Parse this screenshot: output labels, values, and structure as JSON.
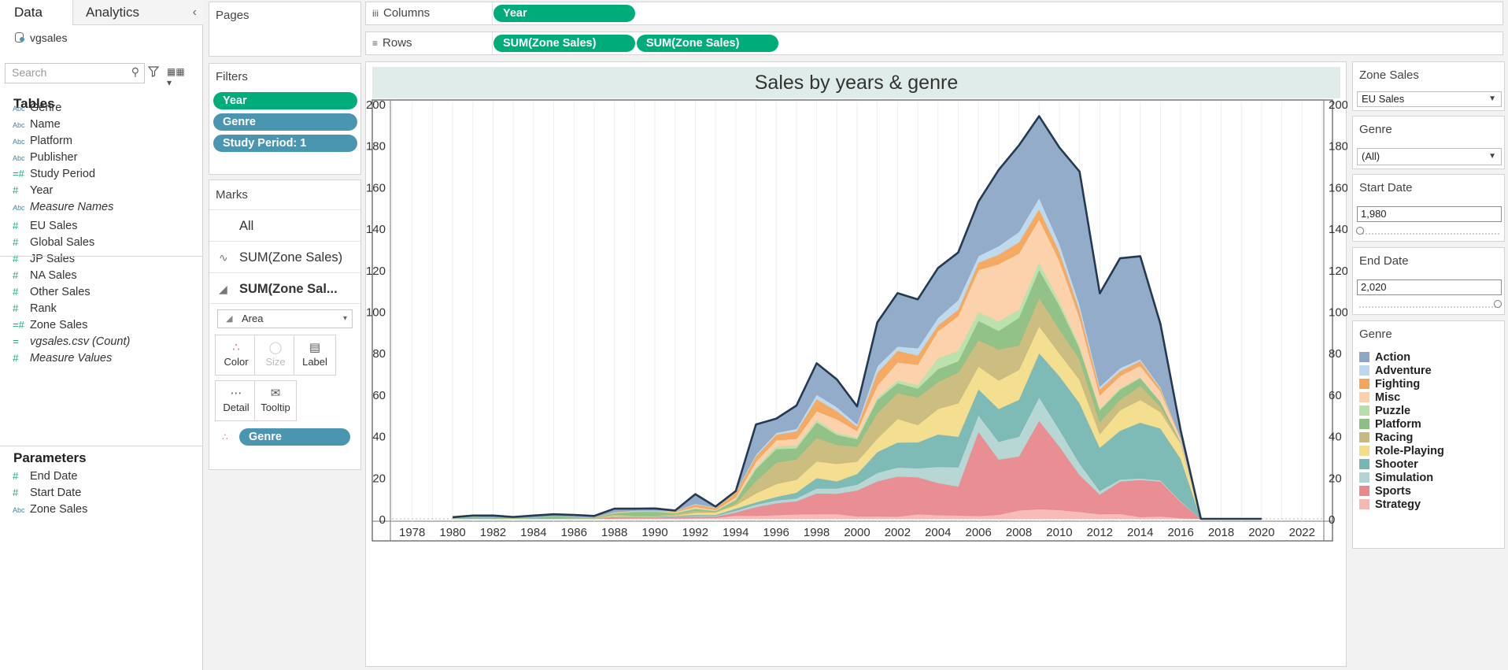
{
  "tabs": {
    "data": "Data",
    "analytics": "Analytics"
  },
  "datasource": "vgsales",
  "search": {
    "placeholder": "Search"
  },
  "tables": {
    "title": "Tables",
    "fields": [
      {
        "type": "Abc",
        "name": "Genre"
      },
      {
        "type": "Abc",
        "name": "Name"
      },
      {
        "type": "Abc",
        "name": "Platform"
      },
      {
        "type": "Abc",
        "name": "Publisher"
      },
      {
        "type": "=#",
        "name": "Study Period"
      },
      {
        "type": "#",
        "name": "Year"
      },
      {
        "type": "Abc",
        "name": "Measure Names"
      },
      {
        "type": "#",
        "name": "EU Sales"
      },
      {
        "type": "#",
        "name": "Global Sales"
      },
      {
        "type": "#",
        "name": "JP Sales"
      },
      {
        "type": "#",
        "name": "NA Sales"
      },
      {
        "type": "#",
        "name": "Other Sales"
      },
      {
        "type": "#",
        "name": "Rank"
      },
      {
        "type": "=#",
        "name": "Zone Sales"
      },
      {
        "type": "=",
        "name": "vgsales.csv (Count)"
      },
      {
        "type": "#",
        "name": "Measure Values"
      }
    ]
  },
  "parameters": {
    "title": "Parameters",
    "fields": [
      {
        "type": "#",
        "name": "End Date"
      },
      {
        "type": "#",
        "name": "Start Date"
      },
      {
        "type": "Abc",
        "name": "Zone Sales"
      }
    ]
  },
  "pages": {
    "title": "Pages"
  },
  "filters": {
    "title": "Filters",
    "pills": [
      "Year",
      "Genre",
      "Study Period: 1"
    ]
  },
  "marks": {
    "title": "Marks",
    "rows": [
      "All",
      "SUM(Zone Sales)",
      "SUM(Zone Sal..."
    ],
    "mark_type": "Area",
    "buttons": [
      "Color",
      "Size",
      "Label",
      "Detail",
      "Tooltip"
    ],
    "color_pill": "Genre"
  },
  "columns_shelf": {
    "label": "Columns",
    "pills": [
      "Year"
    ]
  },
  "rows_shelf": {
    "label": "Rows",
    "pills": [
      "SUM(Zone Sales)",
      "SUM(Zone Sales)"
    ]
  },
  "right_panel": {
    "zone_sales": {
      "title": "Zone Sales",
      "value": "EU Sales"
    },
    "genre_filter": {
      "title": "Genre",
      "value": "(All)"
    },
    "start_date": {
      "title": "Start Date",
      "value": "1,980"
    },
    "end_date": {
      "title": "End Date",
      "value": "2,020"
    },
    "legend_title": "Genre"
  },
  "chart_data": {
    "type": "area",
    "title": "Sales by years & genre",
    "x_label": "",
    "y_label": "",
    "xlim": [
      1977,
      2023
    ],
    "ylim": [
      0,
      200
    ],
    "y_ticks": [
      0,
      20,
      40,
      60,
      80,
      100,
      120,
      140,
      160,
      180,
      200
    ],
    "x_ticks": [
      1978,
      1980,
      1982,
      1984,
      1986,
      1988,
      1990,
      1992,
      1994,
      1996,
      1998,
      2000,
      2002,
      2004,
      2006,
      2008,
      2010,
      2012,
      2014,
      2016,
      2018,
      2020,
      2022
    ],
    "grid": true,
    "stacked": true,
    "x": [
      1980,
      1981,
      1982,
      1983,
      1984,
      1985,
      1986,
      1987,
      1988,
      1989,
      1990,
      1991,
      1992,
      1993,
      1994,
      1995,
      1996,
      1997,
      1998,
      1999,
      2000,
      2001,
      2002,
      2003,
      2004,
      2005,
      2006,
      2007,
      2008,
      2009,
      2010,
      2011,
      2012,
      2013,
      2014,
      2015,
      2016,
      2017,
      2018,
      2019,
      2020
    ],
    "series": [
      {
        "name": "Strategy",
        "color": "#f5b8b4",
        "values": [
          0,
          0,
          0,
          0,
          0,
          0,
          0,
          0,
          0.2,
          0.3,
          0.3,
          0.3,
          0.4,
          0.5,
          1.6,
          1.5,
          1.8,
          2.2,
          2.3,
          2.4,
          1.2,
          1.2,
          1.1,
          2.3,
          1.8,
          1.7,
          1.4,
          2.0,
          4.1,
          4.7,
          4.3,
          3.4,
          2.3,
          2.5,
          0.9,
          1.2,
          0.4,
          0,
          0,
          0,
          0
        ]
      },
      {
        "name": "Sports",
        "color": "#e8888d",
        "values": [
          0.1,
          0.1,
          0.1,
          0.1,
          0.1,
          0.1,
          0.1,
          0.1,
          0.6,
          0.5,
          0.4,
          0.6,
          0.6,
          0.6,
          1.5,
          4.2,
          5.7,
          6.3,
          10.0,
          9.7,
          12.5,
          16.9,
          19.3,
          17.8,
          15.5,
          13.9,
          40.6,
          26.6,
          26.0,
          42.6,
          30.6,
          17.8,
          9.4,
          15.5,
          17.9,
          16.8,
          7.8,
          0,
          0,
          0,
          0
        ]
      },
      {
        "name": "Simulation",
        "color": "#b3d5d2",
        "values": [
          0,
          0,
          0,
          0,
          0,
          0,
          0,
          0,
          0,
          0,
          0.1,
          0.2,
          0.4,
          0.4,
          0.8,
          1.2,
          1.4,
          1.4,
          2.4,
          2.6,
          2.8,
          4.1,
          4.4,
          4.3,
          7.8,
          9.3,
          8.0,
          8.6,
          9.5,
          11.3,
          8.2,
          5.5,
          1.8,
          1.0,
          0.7,
          0.6,
          0.4,
          0,
          0,
          0,
          0
        ]
      },
      {
        "name": "Shooter",
        "color": "#77b7b2",
        "values": [
          0.1,
          0.3,
          0.2,
          0.1,
          0.2,
          0.2,
          0.1,
          0.1,
          0.3,
          0.2,
          0.2,
          0.3,
          0.6,
          0.4,
          1.1,
          1.1,
          1.7,
          2.8,
          5.0,
          3.4,
          5.2,
          10.0,
          12.0,
          12.5,
          15.6,
          14.7,
          12.5,
          15.8,
          17.8,
          21.3,
          25.8,
          29.1,
          20.8,
          23.5,
          26.9,
          25.0,
          20.4,
          0,
          0,
          0,
          0
        ]
      },
      {
        "name": "Role-Playing",
        "color": "#f3dc8a",
        "values": [
          0,
          0,
          0,
          0,
          0,
          0,
          0.1,
          0.1,
          0.5,
          0.3,
          0.2,
          0.3,
          0.9,
          1.2,
          1.6,
          4.3,
          6.2,
          6.2,
          8.0,
          8.4,
          5.9,
          6.5,
          11.4,
          8.4,
          12.3,
          16.1,
          11.0,
          13.7,
          14.4,
          13.0,
          10.9,
          11.3,
          6.6,
          9.9,
          10.9,
          7.9,
          7.3,
          0,
          0,
          0,
          0
        ]
      },
      {
        "name": "Racing",
        "color": "#c9b97a",
        "values": [
          0,
          0,
          0,
          0,
          0,
          0,
          0,
          0.1,
          0.5,
          0.4,
          0.5,
          0.6,
          1.0,
          0.3,
          0.9,
          6.1,
          10.4,
          9.8,
          11.4,
          9.2,
          7.2,
          12.3,
          12.5,
          13.2,
          13.1,
          14.9,
          12.7,
          15.0,
          11.8,
          13.8,
          11.7,
          9.9,
          5.8,
          5.1,
          6.9,
          2.7,
          0.6,
          0,
          0,
          0,
          0
        ]
      },
      {
        "name": "Platform",
        "color": "#8cbf82",
        "values": [
          0,
          0.6,
          0.3,
          0.2,
          0.4,
          1.3,
          0.6,
          0.2,
          0.6,
          1.7,
          1.8,
          0.4,
          0.9,
          0.4,
          1.5,
          5.6,
          6.4,
          5.3,
          7.4,
          4.8,
          3.6,
          6.3,
          4.7,
          4.3,
          6.1,
          5.4,
          9.3,
          8.9,
          13.3,
          13.3,
          11.3,
          5.2,
          5.7,
          4.8,
          3.7,
          2.2,
          0.2,
          0,
          0,
          0,
          0
        ]
      },
      {
        "name": "Puzzle",
        "color": "#b7e0a8",
        "values": [
          0,
          0,
          0,
          0,
          0,
          0,
          0,
          0.1,
          0.3,
          0.3,
          0.2,
          0.4,
          0.4,
          0.2,
          0.6,
          0.9,
          1.4,
          1.3,
          1.2,
          1.0,
          0.8,
          1.1,
          1.4,
          1.8,
          5.3,
          5.0,
          4.2,
          4.6,
          4.1,
          3.7,
          2.1,
          1.1,
          0.6,
          0.6,
          0.3,
          0.2,
          0.1,
          0,
          0,
          0,
          0
        ]
      },
      {
        "name": "Misc",
        "color": "#fcd0a9",
        "values": [
          0.1,
          0.1,
          0.1,
          0,
          0.1,
          0,
          0,
          0,
          0.1,
          0.1,
          0.1,
          0.2,
          0.6,
          0.3,
          0.8,
          2.8,
          2.9,
          3.3,
          4.2,
          6.5,
          3.2,
          5.9,
          8.6,
          9.7,
          13.0,
          16.8,
          20.3,
          27.6,
          26.9,
          20.7,
          19.6,
          13.6,
          6.5,
          6.0,
          5.6,
          4.9,
          1.4,
          0,
          0,
          0,
          0
        ]
      },
      {
        "name": "Fighting",
        "color": "#f3a55a",
        "values": [
          0,
          0,
          0,
          0,
          0,
          0,
          0,
          0.2,
          0.1,
          0.1,
          0.1,
          0.4,
          1.1,
          1.0,
          2.3,
          2.5,
          2.7,
          3.6,
          5.8,
          4.0,
          2.0,
          6.1,
          5.6,
          4.5,
          2.8,
          3.1,
          3.5,
          4.6,
          5.4,
          4.9,
          4.3,
          3.7,
          2.9,
          2.3,
          2.3,
          1.3,
          0.3,
          0,
          0,
          0,
          0
        ]
      },
      {
        "name": "Adventure",
        "color": "#bcd8ec",
        "values": [
          0,
          0,
          0,
          0,
          0,
          0,
          0.1,
          0,
          0.1,
          0.1,
          0.2,
          0.2,
          0.4,
          0.3,
          0.4,
          0.8,
          0.9,
          1.2,
          2.2,
          1.9,
          1.2,
          3.2,
          2.1,
          3.5,
          3.6,
          4.6,
          3.2,
          4.1,
          5.0,
          5.4,
          3.9,
          2.6,
          1.4,
          1.5,
          0.9,
          0.7,
          0.2,
          0,
          0,
          0,
          0
        ]
      },
      {
        "name": "Action",
        "color": "#8da8c6",
        "values": [
          0.5,
          0.5,
          0.9,
          0.5,
          0.8,
          0.6,
          0.9,
          0.5,
          1.6,
          0.9,
          0.9,
          0.1,
          4.6,
          0.3,
          0.3,
          14.5,
          6.8,
          11.2,
          15.1,
          13.3,
          8.6,
          21.1,
          25.7,
          23.5,
          24.0,
          22.9,
          26.2,
          36.7,
          41.7,
          39.4,
          46.3,
          64.2,
          44.9,
          52.9,
          49.6,
          30.4,
          3.5,
          0,
          0,
          0,
          0
        ]
      }
    ]
  }
}
